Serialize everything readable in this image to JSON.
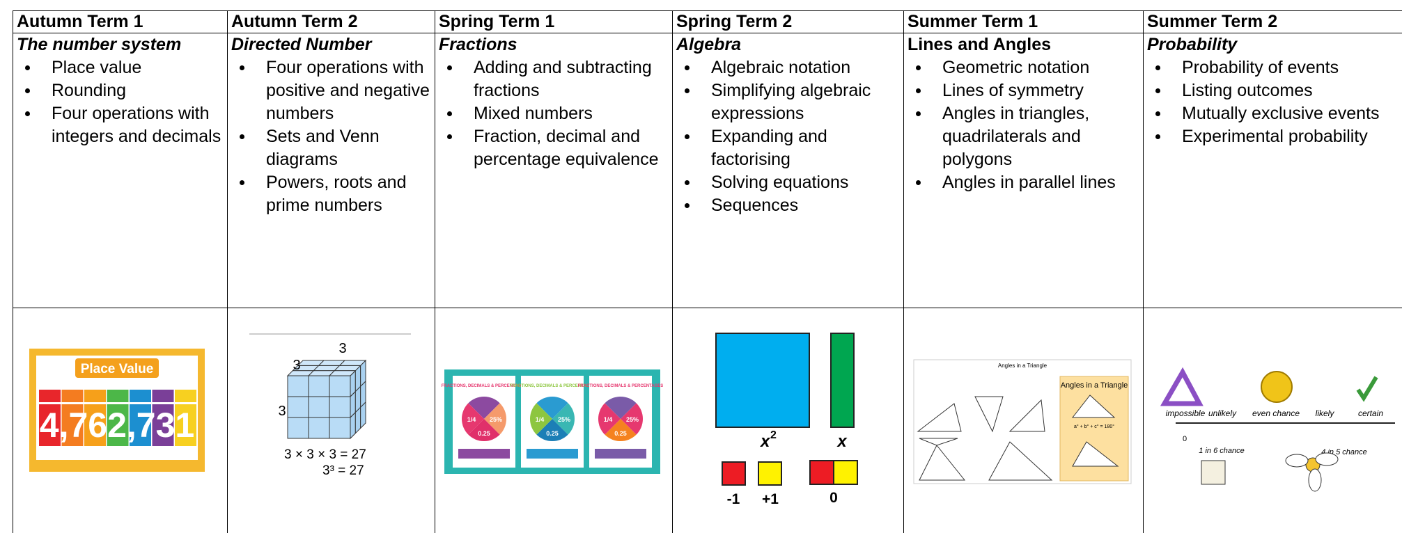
{
  "columns": [
    {
      "term": "Autumn Term 1",
      "topic": "The number system",
      "items": [
        "Place value",
        "Rounding",
        "Four operations with integers and decimals"
      ],
      "image": {
        "title": "Place Value",
        "number": "4,762,731"
      }
    },
    {
      "term": "Autumn Term 2",
      "topic": "Directed Number",
      "items": [
        "Four operations with positive and negative numbers",
        "Sets and Venn diagrams",
        "Powers, roots and prime numbers"
      ],
      "image": {
        "edge_top": "3",
        "edge_left": "3",
        "edge_side": "3",
        "equation": "3 × 3 × 3 = 27",
        "power": "3³ = 27"
      }
    },
    {
      "term": "Spring Term 1",
      "topic": "Fractions",
      "items": [
        "Adding and subtracting fractions",
        "Mixed numbers",
        "Fraction, decimal and percentage equivalence"
      ],
      "image": {
        "poster_title": "FRACTIONS, DECIMALS & PERCENTAGES",
        "fraction": "1/4",
        "percent": "25%",
        "decimal": "0.25"
      }
    },
    {
      "term": "Spring Term 2",
      "topic": "Algebra",
      "items": [
        "Algebraic notation",
        "Simplifying algebraic expressions",
        "Expanding and factorising",
        "Solving equations",
        "Sequences"
      ],
      "image": {
        "square_label": "x",
        "square_power": "2",
        "rod_label": "x",
        "negative": "-1",
        "positive": "+1",
        "zero": "0"
      }
    },
    {
      "term": "Summer Term 1",
      "topic": "Lines and Angles",
      "items": [
        "Geometric notation",
        "Lines of symmetry",
        "Angles in triangles, quadrilaterals and polygons",
        "Angles in parallel lines"
      ],
      "image": {
        "title": "Angles in a Triangle",
        "inset_title": "Angles in a Triangle",
        "formula": "a° + b° + c° = 180°"
      }
    },
    {
      "term": "Summer Term 2",
      "topic": "Probability",
      "items": [
        "Probability of events",
        "Listing outcomes",
        "Mutually exclusive events",
        "Experimental probability"
      ],
      "image": {
        "impossible": "impossible",
        "unlikely": "unlikely",
        "even": "even chance",
        "likely": "likely",
        "certain": "certain",
        "zero": "0",
        "dice": "1 in 6 chance",
        "flower": "4 in 5 chance"
      }
    }
  ]
}
